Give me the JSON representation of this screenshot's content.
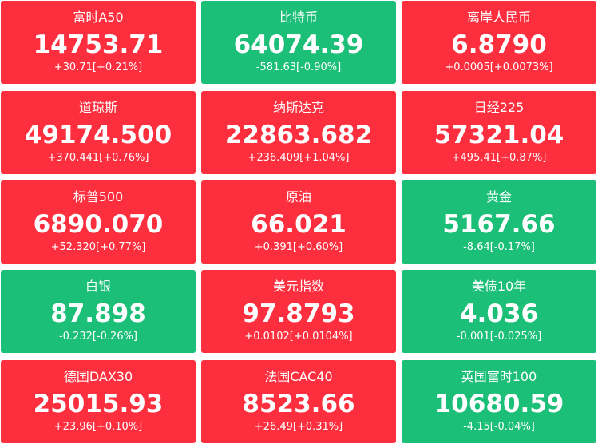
{
  "tiles": [
    {
      "name": "富时A50",
      "price": "14753.71",
      "change": "+30.71[+0.21%]",
      "color": "#fd2f3f"
    },
    {
      "name": "比特币",
      "price": "64074.39",
      "change": "-581.63[-0.90%]",
      "color": "#1bbf78"
    },
    {
      "name": "离岸人民币",
      "price": "6.8790",
      "change": "+0.0005[+0.0073%]",
      "color": "#fd2f3f"
    },
    {
      "name": "道琼斯",
      "price": "49174.500",
      "change": "+370.441[+0.76%]",
      "color": "#fd2f3f"
    },
    {
      "name": "纳斯达克",
      "price": "22863.682",
      "change": "+236.409[+1.04%]",
      "color": "#fd2f3f"
    },
    {
      "name": "日经225",
      "price": "57321.04",
      "change": "+495.41[+0.87%]",
      "color": "#fd2f3f"
    },
    {
      "name": "标普500",
      "price": "6890.070",
      "change": "+52.320[+0.77%]",
      "color": "#fd2f3f"
    },
    {
      "name": "原油",
      "price": "66.021",
      "change": "+0.391[+0.60%]",
      "color": "#fd2f3f"
    },
    {
      "name": "黄金",
      "price": "5167.66",
      "change": "-8.64[-0.17%]",
      "color": "#1bbf78"
    },
    {
      "name": "白银",
      "price": "87.898",
      "change": "-0.232[-0.26%]",
      "color": "#1bbf78"
    },
    {
      "name": "美元指数",
      "price": "97.8793",
      "change": "+0.0102[+0.0104%]",
      "color": "#fd2f3f"
    },
    {
      "name": "美债10年",
      "price": "4.036",
      "change": "-0.001[-0.025%]",
      "color": "#1bbf78"
    },
    {
      "name": "德国DAX30",
      "price": "25015.93",
      "change": "+23.96[+0.10%]",
      "color": "#fd2f3f"
    },
    {
      "name": "法国CAC40",
      "price": "8523.66",
      "change": "+26.49[+0.31%]",
      "color": "#fd2f3f"
    },
    {
      "name": "英国富时100",
      "price": "10680.59",
      "change": "-4.15[-0.04%]",
      "color": "#1bbf78"
    }
  ]
}
